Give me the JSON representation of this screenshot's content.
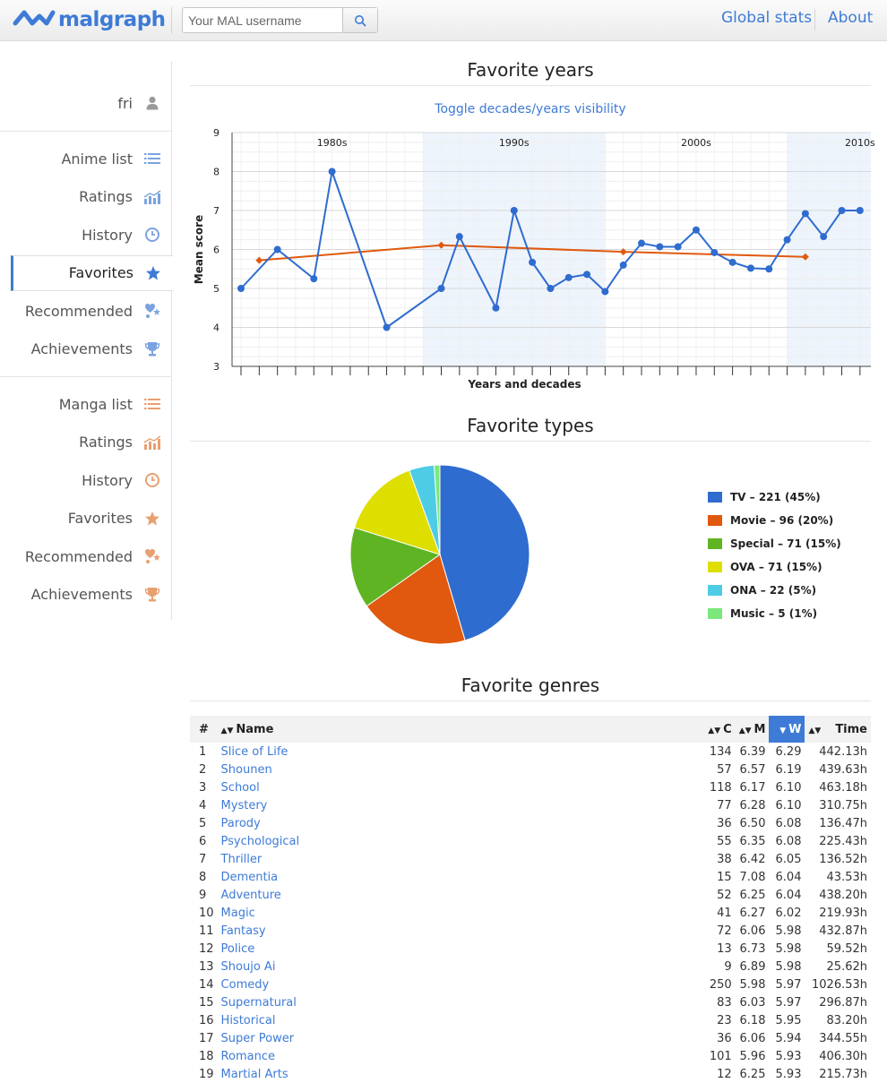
{
  "brand": {
    "name": "malgraph"
  },
  "search": {
    "placeholder": "Your MAL username"
  },
  "nav": {
    "global_stats": "Global stats",
    "about": "About"
  },
  "sidebar": {
    "user": "fri",
    "anime": [
      {
        "label": "Anime list",
        "icon": "list-icon"
      },
      {
        "label": "Ratings",
        "icon": "ratings-icon"
      },
      {
        "label": "History",
        "icon": "history-icon"
      },
      {
        "label": "Favorites",
        "icon": "star-icon",
        "active": true
      },
      {
        "label": "Recommended",
        "icon": "recommended-icon"
      },
      {
        "label": "Achievements",
        "icon": "trophy-icon"
      }
    ],
    "manga": [
      {
        "label": "Manga list",
        "icon": "list-icon"
      },
      {
        "label": "Ratings",
        "icon": "ratings-icon"
      },
      {
        "label": "History",
        "icon": "history-icon"
      },
      {
        "label": "Favorites",
        "icon": "star-icon"
      },
      {
        "label": "Recommended",
        "icon": "recommended-icon"
      },
      {
        "label": "Achievements",
        "icon": "trophy-icon"
      }
    ]
  },
  "colors": {
    "accent": "#3e7bd6",
    "manga_accent": "#e8a070",
    "series_years": "#2f6ccf",
    "series_decades": "#e0590e"
  },
  "sections": {
    "years_title": "Favorite years",
    "toggle_link": "Toggle decades/years visibility",
    "types_title": "Favorite types",
    "genres_title": "Favorite genres"
  },
  "chart_data": [
    {
      "type": "line",
      "title": "",
      "xlabel": "Years and decades",
      "ylabel": "Mean score",
      "ylim": [
        3,
        9
      ],
      "y_ticks": [
        3,
        4,
        5,
        6,
        7,
        8,
        9
      ],
      "grid": true,
      "decade_labels": [
        "1980s",
        "1990s",
        "2000s",
        "2010s"
      ],
      "series": [
        {
          "x": [
            1979,
            1981,
            1983,
            1984,
            1987,
            1990,
            1991,
            1993,
            1994,
            1995,
            1996,
            1997,
            1998,
            1999,
            2000,
            2001,
            2002,
            2003,
            2004,
            2005,
            2006,
            2007,
            2008,
            2009,
            2010,
            2011,
            2012,
            2013
          ],
          "y": [
            5.0,
            6.0,
            5.25,
            8.0,
            4.0,
            5.0,
            6.33,
            4.5,
            7.0,
            5.67,
            5.0,
            5.28,
            5.36,
            4.92,
            5.6,
            6.16,
            6.07,
            6.07,
            6.5,
            5.92,
            5.67,
            5.52,
            5.5,
            6.25,
            6.92,
            6.33,
            7.0,
            7.0
          ]
        },
        {
          "x": [
            1980,
            1990,
            2000,
            2010
          ],
          "y": [
            5.72,
            6.11,
            5.94,
            5.81
          ]
        }
      ]
    },
    {
      "type": "pie",
      "categories": [
        "TV",
        "Movie",
        "Special",
        "OVA",
        "ONA",
        "Music"
      ],
      "values": [
        221,
        96,
        71,
        71,
        22,
        5
      ],
      "legend": [
        "TV – 221 (45%)",
        "Movie – 96 (20%)",
        "Special – 71 (15%)",
        "OVA – 71 (15%)",
        "ONA – 22 (5%)",
        "Music – 5 (1%)"
      ],
      "colors": [
        "#2f6ccf",
        "#e0590e",
        "#5fb423",
        "#dede00",
        "#4ecce5",
        "#7be87b"
      ],
      "legend_position": "right"
    }
  ],
  "genres": {
    "headers": {
      "idx": "#",
      "name": "Name",
      "count": "C",
      "mean": "M",
      "weighted": "W",
      "time": "Time"
    },
    "rows": [
      [
        "1",
        "Slice of Life",
        "134",
        "6.39",
        "6.29",
        "442.13h"
      ],
      [
        "2",
        "Shounen",
        "57",
        "6.57",
        "6.19",
        "439.63h"
      ],
      [
        "3",
        "School",
        "118",
        "6.17",
        "6.10",
        "463.18h"
      ],
      [
        "4",
        "Mystery",
        "77",
        "6.28",
        "6.10",
        "310.75h"
      ],
      [
        "5",
        "Parody",
        "36",
        "6.50",
        "6.08",
        "136.47h"
      ],
      [
        "6",
        "Psychological",
        "55",
        "6.35",
        "6.08",
        "225.43h"
      ],
      [
        "7",
        "Thriller",
        "38",
        "6.42",
        "6.05",
        "136.52h"
      ],
      [
        "8",
        "Dementia",
        "15",
        "7.08",
        "6.04",
        "43.53h"
      ],
      [
        "9",
        "Adventure",
        "52",
        "6.25",
        "6.04",
        "438.20h"
      ],
      [
        "10",
        "Magic",
        "41",
        "6.27",
        "6.02",
        "219.93h"
      ],
      [
        "11",
        "Fantasy",
        "72",
        "6.06",
        "5.98",
        "432.87h"
      ],
      [
        "12",
        "Police",
        "13",
        "6.73",
        "5.98",
        "59.52h"
      ],
      [
        "13",
        "Shoujo Ai",
        "9",
        "6.89",
        "5.98",
        "25.62h"
      ],
      [
        "14",
        "Comedy",
        "250",
        "5.98",
        "5.97",
        "1026.53h"
      ],
      [
        "15",
        "Supernatural",
        "83",
        "6.03",
        "5.97",
        "296.87h"
      ],
      [
        "16",
        "Historical",
        "23",
        "6.18",
        "5.95",
        "83.20h"
      ],
      [
        "17",
        "Super Power",
        "36",
        "6.06",
        "5.94",
        "344.55h"
      ],
      [
        "18",
        "Romance",
        "101",
        "5.96",
        "5.93",
        "406.30h"
      ],
      [
        "19",
        "Martial Arts",
        "12",
        "6.25",
        "5.93",
        "215.73h"
      ]
    ]
  }
}
